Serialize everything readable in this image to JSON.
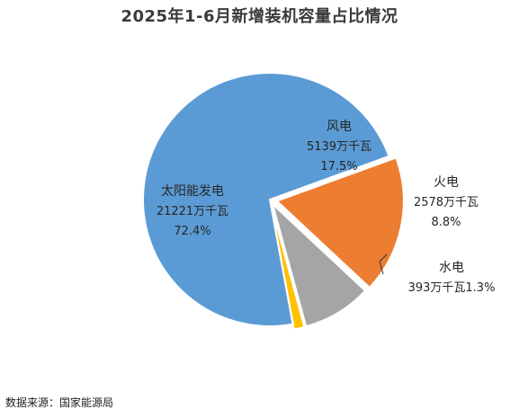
{
  "chart_data": {
    "type": "pie",
    "title": "2025年1-6月新增装机容量占比情况",
    "unit": "万千瓦",
    "slices": [
      {
        "name": "风电",
        "value": 5139,
        "value_label": "5139万千瓦",
        "pct_label": "17.5%",
        "color": "#ED7D31"
      },
      {
        "name": "火电",
        "value": 2578,
        "value_label": "2578万千瓦",
        "pct_label": "8.8%",
        "color": "#A5A5A5"
      },
      {
        "name": "水电",
        "value": 393,
        "value_label": "393万千瓦",
        "pct_label": "1.3%",
        "color": "#FFC000"
      },
      {
        "name": "太阳能发电",
        "value": 21221,
        "value_label": "21221万千瓦",
        "pct_label": "72.4%",
        "color": "#5B9BD5"
      }
    ]
  },
  "footer": {
    "source": "数据来源：国家能源局"
  }
}
